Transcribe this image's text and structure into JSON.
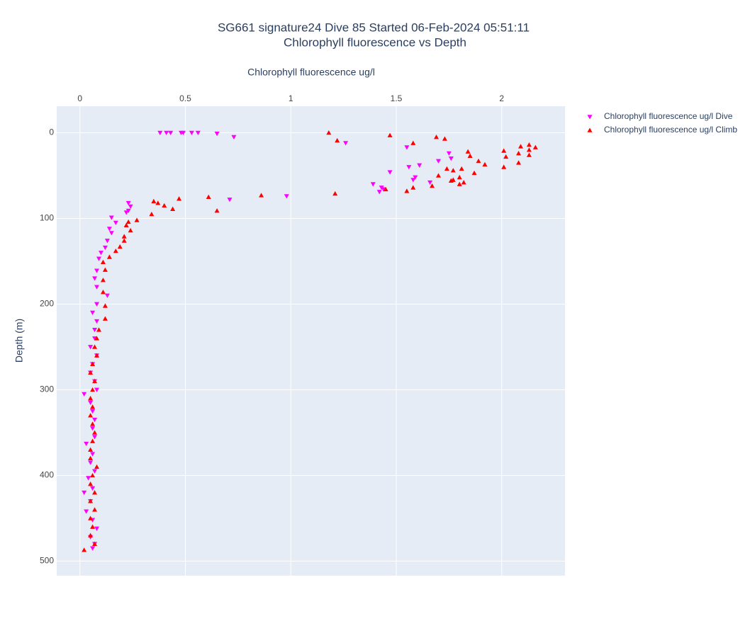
{
  "chart_data": {
    "type": "scatter",
    "title": "SG661 signature24 Dive 85 Started 06-Feb-2024 05:51:11",
    "subtitle": "Chlorophyll fluorescence vs Depth",
    "x_label": "Chlorophyll fluorescence ug/l",
    "y_label": "Depth (m)",
    "xlim": [
      -0.11,
      2.3
    ],
    "xticks": [
      0,
      0.5,
      1,
      1.5,
      2
    ],
    "ylim": [
      -31,
      517
    ],
    "yticks": [
      0,
      100,
      200,
      300,
      400,
      500
    ],
    "y_reversed": true,
    "grid": true,
    "legend": "top-right",
    "series": [
      {
        "name": "Chlorophyll fluorescence ug/l Dive",
        "color": "#ff00ff",
        "marker": "triangle-down",
        "x": [
          0.38,
          0.41,
          0.43,
          0.48,
          0.49,
          0.53,
          0.56,
          0.65,
          0.73,
          1.26,
          1.55,
          1.75,
          1.7,
          1.76,
          1.56,
          1.61,
          1.47,
          1.59,
          1.58,
          1.66,
          1.39,
          1.43,
          1.44,
          1.42,
          0.98,
          0.71,
          0.23,
          0.24,
          0.23,
          0.22,
          0.15,
          0.17,
          0.14,
          0.15,
          0.13,
          0.12,
          0.1,
          0.09,
          0.08,
          0.07,
          0.08,
          0.13,
          0.08,
          0.06,
          0.08,
          0.07,
          0.07,
          0.05,
          0.08,
          0.06,
          0.05,
          0.07,
          0.08,
          0.02,
          0.05,
          0.06,
          0.07,
          0.06,
          0.07,
          0.03,
          0.06,
          0.05,
          0.07,
          0.04,
          0.06,
          0.02,
          0.05,
          0.03,
          0.06,
          0.08,
          0.05,
          0.07,
          0.06
        ],
        "values": [
          0,
          0,
          0,
          0,
          0,
          0,
          0,
          1,
          5,
          12,
          17,
          24,
          33,
          30,
          40,
          38,
          46,
          52,
          55,
          58,
          60,
          64,
          66,
          69,
          74,
          78,
          82,
          86,
          91,
          93,
          99,
          105,
          112,
          117,
          126,
          134,
          140,
          147,
          161,
          170,
          180,
          190,
          200,
          210,
          220,
          230,
          240,
          250,
          260,
          270,
          280,
          290,
          300,
          305,
          315,
          325,
          335,
          345,
          355,
          363,
          375,
          385,
          395,
          403,
          415,
          420,
          430,
          442,
          452,
          462,
          472,
          480,
          485
        ]
      },
      {
        "name": "Chlorophyll fluorescence ug/l Climb",
        "color": "#ff0000",
        "marker": "triangle-up",
        "x": [
          1.18,
          1.47,
          1.69,
          1.73,
          1.22,
          1.58,
          2.13,
          2.09,
          2.16,
          2.13,
          1.84,
          2.01,
          2.08,
          2.13,
          1.85,
          2.02,
          1.89,
          2.08,
          1.92,
          2.01,
          1.74,
          1.81,
          1.77,
          1.87,
          1.7,
          1.8,
          1.77,
          1.76,
          1.82,
          1.8,
          1.67,
          1.58,
          1.45,
          1.55,
          1.21,
          0.86,
          0.61,
          0.47,
          0.35,
          0.37,
          0.4,
          0.44,
          0.65,
          0.34,
          0.27,
          0.23,
          0.22,
          0.24,
          0.21,
          0.21,
          0.19,
          0.17,
          0.14,
          0.11,
          0.12,
          0.11,
          0.11,
          0.12,
          0.12,
          0.09,
          0.08,
          0.07,
          0.08,
          0.06,
          0.05,
          0.07,
          0.06,
          0.05,
          0.06,
          0.05,
          0.06,
          0.07,
          0.06,
          0.05,
          0.05,
          0.08,
          0.06,
          0.05,
          0.07,
          0.05,
          0.07,
          0.05,
          0.06,
          0.05,
          0.07,
          0.02
        ],
        "values": [
          0,
          3,
          5,
          7,
          9,
          12,
          14,
          16,
          17,
          20,
          22,
          21,
          24,
          26,
          27,
          28,
          33,
          35,
          37,
          40,
          42,
          42,
          44,
          47,
          50,
          52,
          55,
          56,
          58,
          60,
          62,
          64,
          66,
          68,
          71,
          73,
          75,
          77,
          80,
          82,
          85,
          89,
          91,
          95,
          102,
          104,
          108,
          114,
          121,
          126,
          133,
          138,
          145,
          151,
          160,
          172,
          186,
          202,
          217,
          230,
          240,
          250,
          260,
          270,
          280,
          290,
          300,
          310,
          320,
          330,
          340,
          350,
          360,
          370,
          380,
          390,
          400,
          410,
          420,
          430,
          440,
          450,
          460,
          470,
          480,
          487
        ]
      }
    ]
  }
}
